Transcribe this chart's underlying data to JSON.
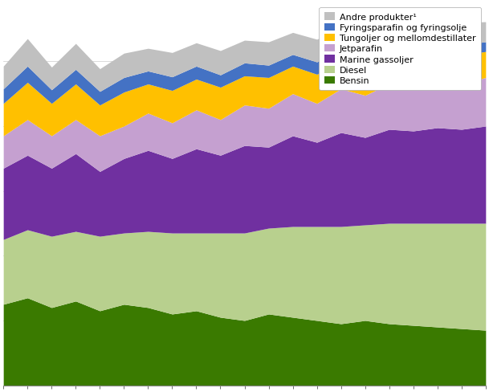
{
  "n_points": 21,
  "background_color": "#ffffff",
  "series": {
    "Bensin": [
      2.5,
      2.7,
      2.4,
      2.6,
      2.3,
      2.5,
      2.4,
      2.2,
      2.3,
      2.1,
      2.0,
      2.2,
      2.1,
      2.0,
      1.9,
      2.0,
      1.9,
      1.85,
      1.8,
      1.75,
      1.7
    ],
    "Diesel": [
      2.0,
      2.1,
      2.2,
      2.15,
      2.3,
      2.2,
      2.35,
      2.5,
      2.4,
      2.6,
      2.7,
      2.65,
      2.8,
      2.9,
      3.0,
      2.95,
      3.1,
      3.15,
      3.2,
      3.25,
      3.3
    ],
    "Marine gassoljer": [
      2.2,
      2.3,
      2.1,
      2.4,
      2.0,
      2.3,
      2.5,
      2.3,
      2.6,
      2.4,
      2.7,
      2.5,
      2.8,
      2.6,
      2.9,
      2.7,
      2.9,
      2.85,
      2.95,
      2.9,
      3.0
    ],
    "Jetparafin": [
      1.0,
      1.1,
      1.0,
      1.05,
      1.1,
      1.0,
      1.15,
      1.1,
      1.2,
      1.1,
      1.25,
      1.2,
      1.3,
      1.2,
      1.35,
      1.3,
      1.4,
      1.35,
      1.45,
      1.4,
      1.5
    ],
    "Tungoljer og mellomdestillater": [
      1.0,
      1.15,
      1.0,
      1.1,
      0.95,
      1.05,
      0.9,
      1.0,
      0.95,
      1.0,
      0.9,
      0.95,
      0.85,
      0.9,
      0.85,
      0.9,
      0.85,
      0.9,
      0.85,
      0.9,
      0.8
    ],
    "Fyringsparafin og fyringsolje": [
      0.45,
      0.5,
      0.42,
      0.45,
      0.42,
      0.45,
      0.4,
      0.42,
      0.4,
      0.38,
      0.4,
      0.38,
      0.36,
      0.38,
      0.35,
      0.38,
      0.35,
      0.33,
      0.35,
      0.32,
      0.3
    ],
    "Andre produkter": [
      0.7,
      0.85,
      0.7,
      0.8,
      0.7,
      0.75,
      0.7,
      0.75,
      0.72,
      0.75,
      0.7,
      0.72,
      0.68,
      0.7,
      0.65,
      0.7,
      0.65,
      0.7,
      0.65,
      0.68,
      0.62
    ]
  },
  "colors_map": {
    "Bensin": "#3a7a00",
    "Diesel": "#b8d08e",
    "Marine gassoljer": "#7030a0",
    "Jetparafin": "#c5a0d0",
    "Tungoljer og mellomdestillater": "#ffc000",
    "Fyringsparafin og fyringsolje": "#4472c4",
    "Andre produkter": "#c0c0c0"
  },
  "legend_labels_map": {
    "Andre produkter": "Andre produkter¹",
    "Fyringsparafin og fyringsolje": "Fyringsparafin og fyringsolje",
    "Tungoljer og mellomdestillater": "Tungoljer og mellomdestillater",
    "Jetparafin": "Jetparafin",
    "Marine gassoljer": "Marine gassoljer",
    "Diesel": "Diesel",
    "Bensin": "Bensin"
  },
  "series_order": [
    "Bensin",
    "Diesel",
    "Marine gassoljer",
    "Jetparafin",
    "Tungoljer og mellomdestillater",
    "Fyringsparafin og fyringsolje",
    "Andre produkter"
  ],
  "legend_order": [
    "Andre produkter",
    "Fyringsparafin og fyringsolje",
    "Tungoljer og mellomdestillater",
    "Jetparafin",
    "Marine gassoljer",
    "Diesel",
    "Bensin"
  ],
  "grid_color": "#cccccc",
  "spine_color": "#888888"
}
